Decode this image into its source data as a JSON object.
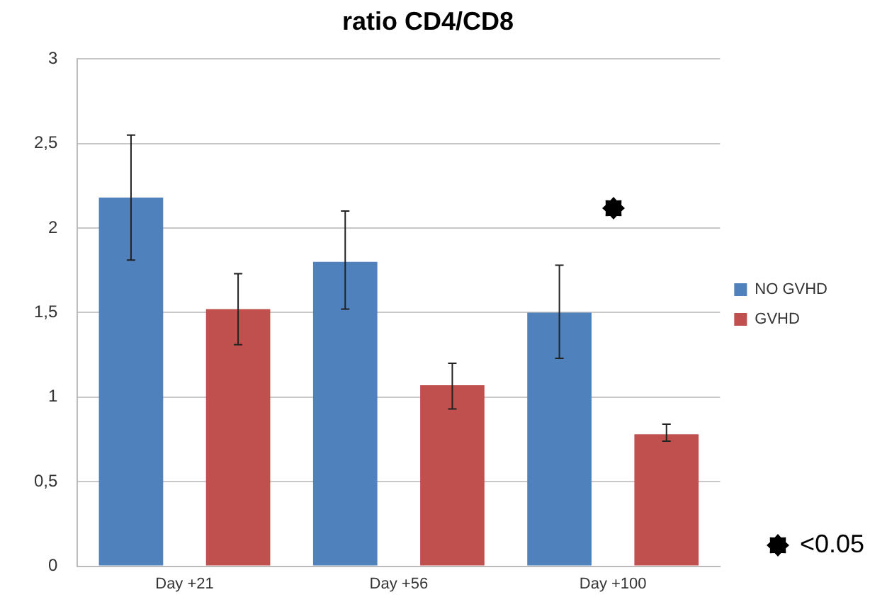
{
  "chart_data": {
    "type": "bar",
    "title": "ratio CD4/CD8",
    "categories": [
      "Day +21",
      "Day +56",
      "Day +100"
    ],
    "series": [
      {
        "name": "NO GVHD",
        "color": "#4f81bd",
        "values": [
          2.18,
          1.8,
          1.5
        ],
        "errors": [
          [
            1.81,
            2.55
          ],
          [
            1.52,
            2.1
          ],
          [
            1.23,
            1.78
          ]
        ]
      },
      {
        "name": "GVHD",
        "color": "#c0504d",
        "values": [
          1.52,
          1.07,
          0.78
        ],
        "errors": [
          [
            1.31,
            1.73
          ],
          [
            0.93,
            1.2
          ],
          [
            0.74,
            0.84
          ]
        ]
      }
    ],
    "ylim": [
      0,
      3
    ],
    "yticks": [
      {
        "value": 0,
        "label": "0"
      },
      {
        "value": 0.5,
        "label": "0,5"
      },
      {
        "value": 1,
        "label": "1"
      },
      {
        "value": 1.5,
        "label": "1,5"
      },
      {
        "value": 2,
        "label": "2"
      },
      {
        "value": 2.5,
        "label": "2,5"
      },
      {
        "value": 3,
        "label": "3"
      }
    ],
    "grid": "y",
    "legend": "right",
    "annotations": [
      "<0.05"
    ]
  }
}
